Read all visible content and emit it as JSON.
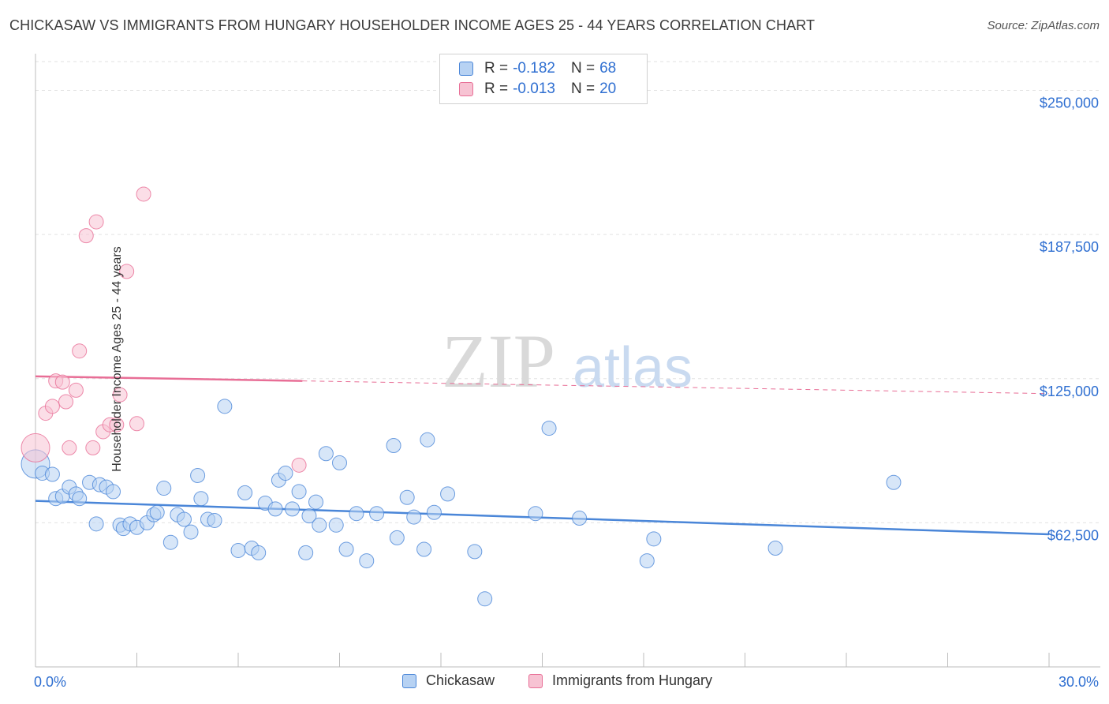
{
  "title": "CHICKASAW VS IMMIGRANTS FROM HUNGARY HOUSEHOLDER INCOME AGES 25 - 44 YEARS CORRELATION CHART",
  "source": "Source: ZipAtlas.com",
  "watermark": {
    "zip": "ZIP",
    "atlas": "atlas"
  },
  "colors": {
    "blue": "#4a86d8",
    "blue_fill": "#b7d2f3",
    "pink": "#e86e96",
    "pink_fill": "#f7c3d3",
    "tick_label": "#2f6fd1"
  },
  "legend": {
    "r_label": "R =",
    "n_label": "N =",
    "rows": [
      {
        "r": "-0.182",
        "n": "68"
      },
      {
        "r": "-0.013",
        "n": "20"
      }
    ]
  },
  "chart_data": {
    "type": "scatter",
    "xlabel": "",
    "ylabel": "Householder Income Ages 25 - 44 years",
    "xlim": [
      0,
      30
    ],
    "ylim": [
      0,
      262500
    ],
    "x_tick_labels": {
      "min": "0.0%",
      "max": "30.0%"
    },
    "y_ticks": [
      {
        "value": 62500,
        "label": "$62,500"
      },
      {
        "value": 125000,
        "label": "$125,000"
      },
      {
        "value": 187500,
        "label": "$187,500"
      },
      {
        "value": 250000,
        "label": "$250,000"
      }
    ],
    "series": [
      {
        "name": "Chickasaw",
        "color": "#4a86d8",
        "trend": {
          "x0": 0,
          "y0": 72000,
          "x1": 30,
          "y1": 57500,
          "solid_until": 30
        },
        "points": [
          [
            0.0,
            88000
          ],
          [
            0.2,
            84000
          ],
          [
            0.5,
            83500
          ],
          [
            0.6,
            73000
          ],
          [
            0.8,
            74000
          ],
          [
            1.0,
            78000
          ],
          [
            1.2,
            75000
          ],
          [
            1.3,
            73000
          ],
          [
            1.6,
            80000
          ],
          [
            1.8,
            62000
          ],
          [
            1.9,
            79000
          ],
          [
            2.1,
            78000
          ],
          [
            2.3,
            76000
          ],
          [
            2.5,
            61500
          ],
          [
            2.6,
            60000
          ],
          [
            2.8,
            62000
          ],
          [
            3.0,
            60500
          ],
          [
            3.3,
            62500
          ],
          [
            3.5,
            66000
          ],
          [
            3.6,
            67000
          ],
          [
            3.8,
            77500
          ],
          [
            4.0,
            54000
          ],
          [
            4.2,
            66000
          ],
          [
            4.4,
            64000
          ],
          [
            4.6,
            58500
          ],
          [
            4.8,
            83000
          ],
          [
            4.9,
            73000
          ],
          [
            5.1,
            64000
          ],
          [
            5.3,
            63500
          ],
          [
            5.6,
            113000
          ],
          [
            6.0,
            50500
          ],
          [
            6.2,
            75500
          ],
          [
            6.4,
            51500
          ],
          [
            6.6,
            49500
          ],
          [
            6.8,
            71000
          ],
          [
            7.1,
            68500
          ],
          [
            7.2,
            81000
          ],
          [
            7.4,
            84000
          ],
          [
            7.6,
            68500
          ],
          [
            7.8,
            76000
          ],
          [
            8.0,
            49500
          ],
          [
            8.1,
            65500
          ],
          [
            8.3,
            71500
          ],
          [
            8.4,
            61500
          ],
          [
            8.6,
            92500
          ],
          [
            8.9,
            61500
          ],
          [
            9.0,
            88500
          ],
          [
            9.2,
            51000
          ],
          [
            9.5,
            66500
          ],
          [
            9.8,
            46000
          ],
          [
            10.1,
            66500
          ],
          [
            10.6,
            96000
          ],
          [
            10.7,
            56000
          ],
          [
            11.0,
            73500
          ],
          [
            11.2,
            65000
          ],
          [
            11.5,
            51000
          ],
          [
            11.6,
            98500
          ],
          [
            11.8,
            67000
          ],
          [
            12.2,
            75000
          ],
          [
            13.0,
            50000
          ],
          [
            13.3,
            29500
          ],
          [
            14.8,
            66500
          ],
          [
            15.2,
            103500
          ],
          [
            16.1,
            64500
          ],
          [
            18.3,
            55500
          ],
          [
            18.1,
            46000
          ],
          [
            21.9,
            51500
          ],
          [
            25.4,
            80000
          ]
        ]
      },
      {
        "name": "Immigrants from Hungary",
        "color": "#e86e96",
        "trend": {
          "x0": 0,
          "y0": 126000,
          "x1": 30,
          "y1": 118500,
          "solid_until": 7.9
        },
        "points": [
          [
            0.0,
            95000
          ],
          [
            0.3,
            110000
          ],
          [
            0.5,
            113000
          ],
          [
            0.6,
            124000
          ],
          [
            0.8,
            123500
          ],
          [
            0.9,
            115000
          ],
          [
            1.0,
            95000
          ],
          [
            1.2,
            120000
          ],
          [
            1.3,
            137000
          ],
          [
            1.5,
            187000
          ],
          [
            1.7,
            95000
          ],
          [
            1.8,
            193000
          ],
          [
            2.0,
            102000
          ],
          [
            2.2,
            105000
          ],
          [
            2.4,
            105000
          ],
          [
            2.5,
            118000
          ],
          [
            2.7,
            171500
          ],
          [
            3.0,
            105500
          ],
          [
            3.2,
            205000
          ],
          [
            7.8,
            87500
          ]
        ]
      }
    ]
  },
  "bottom_legend": [
    {
      "label": "Chickasaw"
    },
    {
      "label": "Immigrants from Hungary"
    }
  ]
}
